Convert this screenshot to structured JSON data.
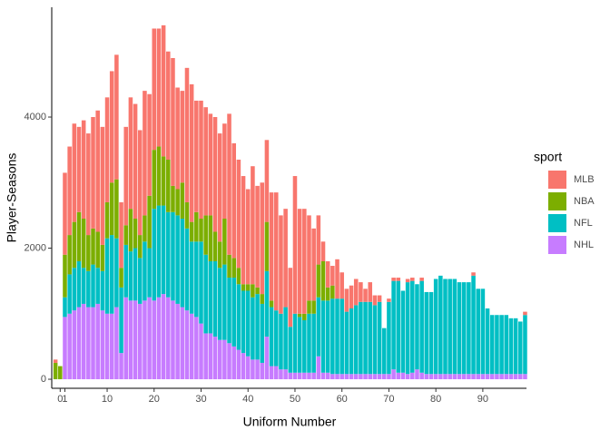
{
  "chart_data": {
    "type": "bar",
    "stacked": true,
    "x_label": "Uniform Number",
    "y_label": "Player-Seasons",
    "legend_title": "sport",
    "legend": "right",
    "x": [
      -1,
      0,
      1,
      2,
      3,
      4,
      5,
      6,
      7,
      8,
      9,
      10,
      11,
      12,
      13,
      14,
      15,
      16,
      17,
      18,
      19,
      20,
      21,
      22,
      23,
      24,
      25,
      26,
      27,
      28,
      29,
      30,
      31,
      32,
      33,
      34,
      35,
      36,
      37,
      38,
      39,
      40,
      41,
      42,
      43,
      44,
      45,
      46,
      47,
      48,
      49,
      50,
      51,
      52,
      53,
      54,
      55,
      56,
      57,
      58,
      59,
      60,
      61,
      62,
      63,
      64,
      65,
      66,
      67,
      68,
      69,
      70,
      71,
      72,
      73,
      74,
      75,
      76,
      77,
      78,
      79,
      80,
      81,
      82,
      83,
      84,
      85,
      86,
      87,
      88,
      89,
      90,
      91,
      92,
      93,
      94,
      95,
      96,
      97,
      98,
      99
    ],
    "series": [
      {
        "name": "MLB",
        "color": "#F8766D",
        "values": [
          50,
          0,
          1250,
          1350,
          1500,
          1300,
          1500,
          1550,
          1700,
          1850,
          1800,
          1600,
          1700,
          1900,
          1000,
          1500,
          1700,
          1750,
          1600,
          1900,
          1550,
          1850,
          1800,
          2000,
          1650,
          1950,
          1550,
          1400,
          2050,
          2100,
          1700,
          1800,
          1650,
          1550,
          1750,
          1650,
          1450,
          2150,
          1750,
          1650,
          1650,
          1450,
          1800,
          1550,
          1700,
          1250,
          1650,
          1800,
          1500,
          1500,
          900,
          2100,
          1600,
          1600,
          1300,
          1100,
          750,
          300,
          400,
          300,
          600,
          400,
          350,
          350,
          400,
          300,
          200,
          300,
          150,
          100,
          0,
          50,
          50,
          50,
          0,
          50,
          50,
          0,
          50,
          0,
          0,
          0,
          0,
          0,
          0,
          0,
          0,
          0,
          0,
          50,
          0,
          0,
          0,
          0,
          0,
          0,
          0,
          0,
          0,
          0,
          50
        ]
      },
      {
        "name": "NBA",
        "color": "#7CAE00",
        "values": [
          250,
          200,
          650,
          600,
          700,
          750,
          750,
          550,
          550,
          550,
          400,
          550,
          800,
          900,
          300,
          300,
          650,
          450,
          350,
          400,
          800,
          900,
          900,
          750,
          800,
          400,
          400,
          550,
          400,
          300,
          450,
          350,
          600,
          700,
          450,
          400,
          700,
          350,
          300,
          250,
          100,
          100,
          200,
          100,
          150,
          750,
          100,
          0,
          0,
          0,
          0,
          0,
          50,
          100,
          200,
          200,
          500,
          600,
          200,
          200,
          0,
          0,
          0,
          0,
          0,
          0,
          0,
          0,
          0,
          0,
          0,
          0,
          0,
          0,
          0,
          0,
          0,
          0,
          0,
          0,
          0,
          0,
          0,
          0,
          0,
          0,
          0,
          0,
          0,
          0,
          0,
          0,
          0,
          0,
          0,
          0,
          0,
          0,
          0,
          0,
          0
        ]
      },
      {
        "name": "NFL",
        "color": "#00BFC4",
        "values": [
          0,
          0,
          300,
          600,
          650,
          700,
          550,
          550,
          650,
          550,
          600,
          1150,
          1200,
          1050,
          1000,
          800,
          750,
          800,
          700,
          900,
          750,
          1400,
          1400,
          1350,
          1300,
          1350,
          1350,
          1350,
          1250,
          1100,
          1150,
          1250,
          1200,
          1100,
          1150,
          1100,
          1150,
          1000,
          1050,
          1000,
          950,
          1000,
          950,
          1000,
          900,
          1000,
          900,
          850,
          850,
          950,
          700,
          900,
          850,
          800,
          900,
          900,
          900,
          1100,
          1100,
          1150,
          1150,
          1150,
          950,
          1000,
          1050,
          1100,
          1100,
          1100,
          1050,
          1100,
          700,
          1100,
          1350,
          1400,
          1250,
          1400,
          1400,
          1300,
          1400,
          1250,
          1250,
          1450,
          1500,
          1450,
          1450,
          1450,
          1400,
          1400,
          1400,
          1500,
          1300,
          1300,
          1000,
          900,
          900,
          900,
          900,
          850,
          850,
          800,
          900
        ]
      },
      {
        "name": "NHL",
        "color": "#C77CFF",
        "values": [
          0,
          0,
          950,
          1000,
          1050,
          1100,
          1150,
          1100,
          1100,
          1150,
          1050,
          1000,
          1000,
          1100,
          400,
          1250,
          1200,
          1200,
          1150,
          1200,
          1250,
          1200,
          1250,
          1300,
          1250,
          1200,
          1150,
          1100,
          1050,
          1000,
          950,
          850,
          700,
          700,
          650,
          600,
          600,
          550,
          500,
          450,
          400,
          350,
          300,
          300,
          250,
          650,
          200,
          200,
          150,
          150,
          100,
          100,
          100,
          100,
          100,
          100,
          350,
          100,
          100,
          80,
          80,
          80,
          80,
          80,
          80,
          80,
          80,
          80,
          80,
          80,
          80,
          80,
          150,
          100,
          100,
          80,
          100,
          150,
          100,
          80,
          80,
          80,
          80,
          80,
          80,
          80,
          80,
          80,
          80,
          80,
          80,
          80,
          80,
          80,
          80,
          80,
          80,
          80,
          80,
          80,
          80
        ]
      }
    ],
    "xlim": [
      -1.8,
      99.3
    ],
    "xticks": [
      0,
      1,
      10,
      20,
      30,
      40,
      50,
      60,
      70,
      80,
      90
    ],
    "ylim": [
      -138,
      5675
    ],
    "yticks": [
      0,
      2000,
      4000
    ],
    "grid": false
  }
}
